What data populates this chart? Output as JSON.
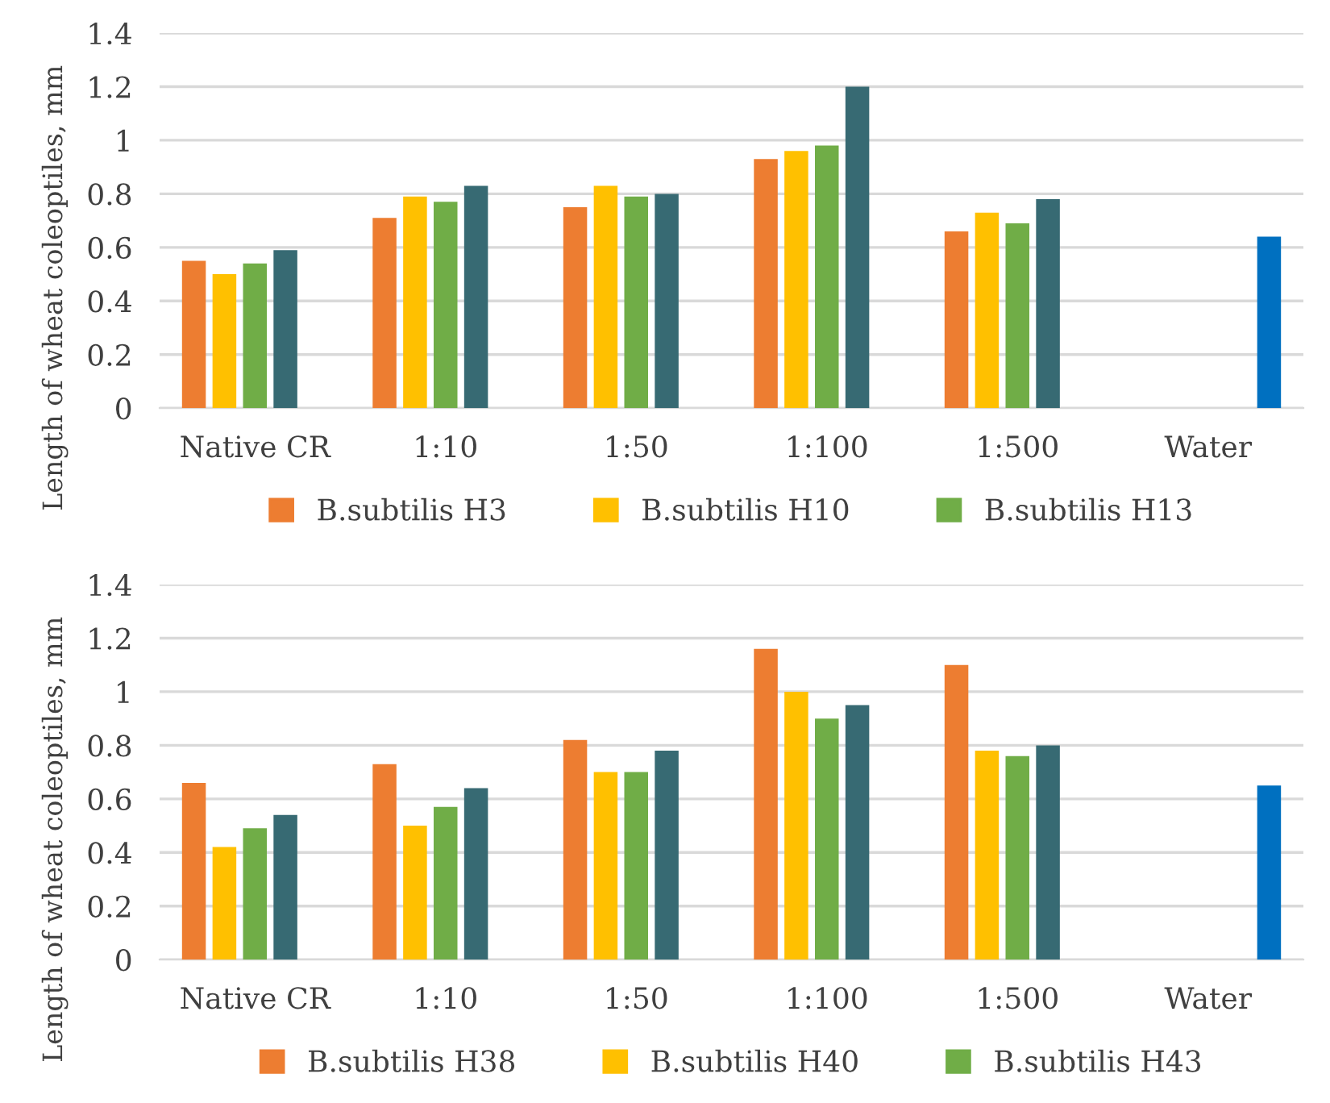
{
  "chart_data": [
    {
      "type": "bar",
      "ylabel": "Length of wheat coleoptiles, mm",
      "categories": [
        "Native CR",
        "1:10",
        "1:50",
        "1:100",
        "1:500",
        "Water"
      ],
      "series": [
        {
          "name": "B.subtilis H3",
          "color": "#ed7d31",
          "values": [
            0.55,
            0.71,
            0.75,
            0.93,
            0.66,
            null
          ]
        },
        {
          "name": "B.subtilis H10",
          "color": "#ffc000",
          "values": [
            0.5,
            0.79,
            0.83,
            0.96,
            0.73,
            null
          ]
        },
        {
          "name": "B.subtilis H13",
          "color": "#70ad47",
          "values": [
            0.54,
            0.77,
            0.79,
            0.98,
            0.69,
            null
          ]
        },
        {
          "color": "#376a73",
          "values": [
            0.59,
            0.83,
            0.8,
            1.2,
            0.78,
            null
          ]
        },
        {
          "color": "#0070c0",
          "values": [
            null,
            null,
            null,
            null,
            null,
            0.64
          ]
        }
      ],
      "ylim": [
        0,
        1.4
      ],
      "yticks": [
        0,
        0.2,
        0.4,
        0.6,
        0.8,
        1,
        1.2,
        1.4
      ],
      "grid": "y",
      "legend": "bottom"
    },
    {
      "type": "bar",
      "ylabel": "Length of wheat coleoptiles, mm",
      "categories": [
        "Native CR",
        "1:10",
        "1:50",
        "1:100",
        "1:500",
        "Water"
      ],
      "series": [
        {
          "name": "B.subtilis H38",
          "color": "#ed7d31",
          "values": [
            0.66,
            0.73,
            0.82,
            1.16,
            1.1,
            null
          ]
        },
        {
          "name": "B.subtilis H40",
          "color": "#ffc000",
          "values": [
            0.42,
            0.5,
            0.7,
            1.0,
            0.78,
            null
          ]
        },
        {
          "name": "B.subtilis H43",
          "color": "#70ad47",
          "values": [
            0.49,
            0.57,
            0.7,
            0.9,
            0.76,
            null
          ]
        },
        {
          "color": "#376a73",
          "values": [
            0.54,
            0.64,
            0.78,
            0.95,
            0.8,
            null
          ]
        },
        {
          "color": "#0070c0",
          "values": [
            null,
            null,
            null,
            null,
            null,
            0.65
          ]
        }
      ],
      "ylim": [
        0,
        1.4
      ],
      "yticks": [
        0,
        0.2,
        0.4,
        0.6,
        0.8,
        1,
        1.2,
        1.4
      ],
      "grid": "y",
      "legend": "bottom"
    }
  ]
}
